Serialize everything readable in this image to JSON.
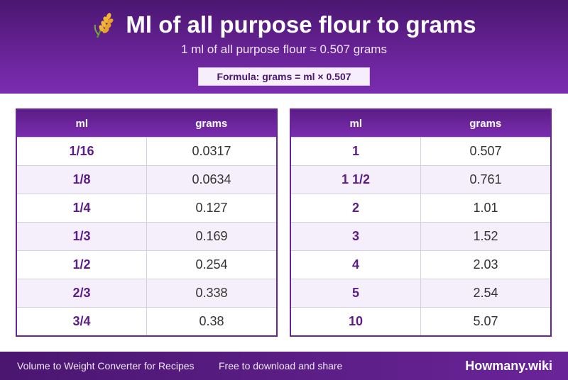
{
  "header": {
    "icon": "wheat-icon",
    "title": "Ml of all purpose flour to grams",
    "subtitle": "1 ml of all purpose flour ≈ 0.507 grams",
    "formula": "Formula: grams = ml × 0.507"
  },
  "tables": [
    {
      "col_ml": "ml",
      "col_grams": "grams",
      "rows": [
        {
          "ml": "1/16",
          "grams": "0.0317"
        },
        {
          "ml": "1/8",
          "grams": "0.0634"
        },
        {
          "ml": "1/4",
          "grams": "0.127"
        },
        {
          "ml": "1/3",
          "grams": "0.169"
        },
        {
          "ml": "1/2",
          "grams": "0.254"
        },
        {
          "ml": "2/3",
          "grams": "0.338"
        },
        {
          "ml": "3/4",
          "grams": "0.38"
        }
      ]
    },
    {
      "col_ml": "ml",
      "col_grams": "grams",
      "rows": [
        {
          "ml": "1",
          "grams": "0.507"
        },
        {
          "ml": "1 1/2",
          "grams": "0.761"
        },
        {
          "ml": "2",
          "grams": "1.01"
        },
        {
          "ml": "3",
          "grams": "1.52"
        },
        {
          "ml": "4",
          "grams": "2.03"
        },
        {
          "ml": "5",
          "grams": "2.54"
        },
        {
          "ml": "10",
          "grams": "5.07"
        }
      ]
    }
  ],
  "footer": {
    "left": "Volume to Weight Converter for Recipes",
    "middle": "Free to download and share",
    "brand": "Howmany.wiki"
  },
  "colors": {
    "primary": "#6a2499",
    "dark": "#4a1670",
    "row_alt": "#f4effa"
  }
}
